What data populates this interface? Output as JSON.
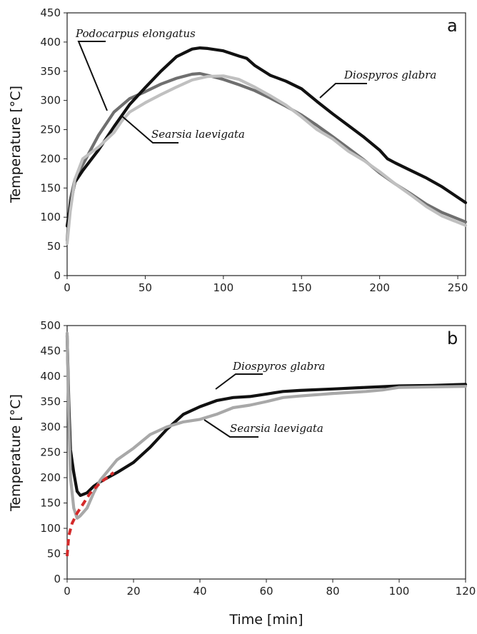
{
  "chart_data": [
    {
      "type": "line",
      "panel_label": "a",
      "xlabel": "",
      "ylabel": "Temperature [°C]",
      "xlim": [
        0,
        255
      ],
      "ylim": [
        0,
        450
      ],
      "xticks": [
        0,
        50,
        100,
        150,
        200,
        250
      ],
      "yticks": [
        0,
        50,
        100,
        150,
        200,
        250,
        300,
        350,
        400,
        450
      ],
      "series": [
        {
          "name": "Podocarpus elongatus",
          "color": "#6f6f6f",
          "points": [
            [
              0,
              60
            ],
            [
              2,
              130
            ],
            [
              5,
              165
            ],
            [
              10,
              190
            ],
            [
              20,
              240
            ],
            [
              30,
              280
            ],
            [
              40,
              303
            ],
            [
              50,
              315
            ],
            [
              60,
              328
            ],
            [
              70,
              338
            ],
            [
              80,
              345
            ],
            [
              85,
              346
            ],
            [
              90,
              343
            ],
            [
              100,
              336
            ],
            [
              110,
              327
            ],
            [
              120,
              317
            ],
            [
              130,
              304
            ],
            [
              140,
              290
            ],
            [
              150,
              275
            ],
            [
              160,
              257
            ],
            [
              170,
              238
            ],
            [
              180,
              218
            ],
            [
              190,
              198
            ],
            [
              200,
              176
            ],
            [
              210,
              157
            ],
            [
              220,
              140
            ],
            [
              230,
              122
            ],
            [
              240,
              108
            ],
            [
              255,
              92
            ]
          ]
        },
        {
          "name": "Diospyros glabra",
          "color": "#111111",
          "points": [
            [
              0,
              85
            ],
            [
              2,
              120
            ],
            [
              5,
              160
            ],
            [
              10,
              180
            ],
            [
              20,
              215
            ],
            [
              30,
              255
            ],
            [
              40,
              293
            ],
            [
              50,
              322
            ],
            [
              60,
              350
            ],
            [
              70,
              375
            ],
            [
              80,
              388
            ],
            [
              85,
              390
            ],
            [
              90,
              389
            ],
            [
              100,
              385
            ],
            [
              110,
              376
            ],
            [
              115,
              372
            ],
            [
              120,
              360
            ],
            [
              130,
              343
            ],
            [
              140,
              333
            ],
            [
              150,
              320
            ],
            [
              160,
              298
            ],
            [
              170,
              277
            ],
            [
              180,
              257
            ],
            [
              190,
              237
            ],
            [
              200,
              215
            ],
            [
              205,
              200
            ],
            [
              210,
              193
            ],
            [
              220,
              180
            ],
            [
              230,
              167
            ],
            [
              240,
              152
            ],
            [
              255,
              125
            ]
          ]
        },
        {
          "name": "Searsia laevigata",
          "color": "#c0c0c0",
          "points": [
            [
              0,
              55
            ],
            [
              2,
              110
            ],
            [
              5,
              165
            ],
            [
              10,
              200
            ],
            [
              20,
              220
            ],
            [
              30,
              245
            ],
            [
              35,
              265
            ],
            [
              40,
              280
            ],
            [
              50,
              296
            ],
            [
              60,
              310
            ],
            [
              70,
              323
            ],
            [
              80,
              335
            ],
            [
              90,
              341
            ],
            [
              100,
              342
            ],
            [
              110,
              336
            ],
            [
              120,
              323
            ],
            [
              130,
              308
            ],
            [
              140,
              292
            ],
            [
              150,
              272
            ],
            [
              160,
              250
            ],
            [
              170,
              234
            ],
            [
              180,
              213
            ],
            [
              190,
              197
            ],
            [
              200,
              178
            ],
            [
              210,
              157
            ],
            [
              220,
              138
            ],
            [
              230,
              118
            ],
            [
              240,
              102
            ],
            [
              255,
              86
            ]
          ]
        }
      ],
      "annotations": [
        {
          "text": "Podocarpus elongatus",
          "series": "Podocarpus elongatus"
        },
        {
          "text": "Diospyros glabra",
          "series": "Diospyros glabra"
        },
        {
          "text": "Searsia laevigata",
          "series": "Searsia laevigata"
        }
      ]
    },
    {
      "type": "line",
      "panel_label": "b",
      "xlabel": "Time [min]",
      "ylabel": "Temperature [°C]",
      "xlim": [
        0,
        120
      ],
      "ylim": [
        0,
        500
      ],
      "xticks": [
        0,
        20,
        40,
        60,
        80,
        100,
        120
      ],
      "yticks": [
        0,
        50,
        100,
        150,
        200,
        250,
        300,
        350,
        400,
        450,
        500
      ],
      "series": [
        {
          "name": "Diospyros glabra",
          "color": "#111111",
          "points": [
            [
              0,
              480
            ],
            [
              0.5,
              350
            ],
            [
              1,
              255
            ],
            [
              2,
              210
            ],
            [
              3,
              173
            ],
            [
              4,
              165
            ],
            [
              6,
              170
            ],
            [
              8,
              183
            ],
            [
              10,
              192
            ],
            [
              15,
              210
            ],
            [
              20,
              230
            ],
            [
              25,
              260
            ],
            [
              30,
              295
            ],
            [
              35,
              325
            ],
            [
              40,
              340
            ],
            [
              45,
              352
            ],
            [
              50,
              358
            ],
            [
              55,
              360
            ],
            [
              60,
              365
            ],
            [
              65,
              370
            ],
            [
              70,
              372
            ],
            [
              80,
              375
            ],
            [
              90,
              378
            ],
            [
              100,
              381
            ],
            [
              110,
              382
            ],
            [
              120,
              384
            ]
          ]
        },
        {
          "name": "Searsia laevigata",
          "color": "#a8a8a8",
          "points": [
            [
              0,
              485
            ],
            [
              0.5,
              320
            ],
            [
              1,
              200
            ],
            [
              2,
              140
            ],
            [
              3,
              120
            ],
            [
              4,
              125
            ],
            [
              6,
              140
            ],
            [
              8,
              170
            ],
            [
              10,
              195
            ],
            [
              15,
              235
            ],
            [
              20,
              258
            ],
            [
              25,
              285
            ],
            [
              30,
              300
            ],
            [
              35,
              310
            ],
            [
              40,
              315
            ],
            [
              45,
              325
            ],
            [
              50,
              338
            ],
            [
              55,
              343
            ],
            [
              60,
              350
            ],
            [
              65,
              358
            ],
            [
              70,
              361
            ],
            [
              80,
              366
            ],
            [
              90,
              370
            ],
            [
              95,
              373
            ],
            [
              100,
              378
            ],
            [
              110,
              379
            ],
            [
              120,
              380
            ]
          ]
        },
        {
          "name": "",
          "color": "#d42a2a",
          "dashed": true,
          "points": [
            [
              0,
              45
            ],
            [
              0.5,
              85
            ],
            [
              1.5,
              110
            ],
            [
              3,
              130
            ],
            [
              5,
              150
            ],
            [
              7,
              170
            ],
            [
              10,
              190
            ],
            [
              14,
              210
            ]
          ]
        }
      ],
      "annotations": [
        {
          "text": "Diospyros glabra",
          "series": "Diospyros glabra"
        },
        {
          "text": "Searsia laevigata",
          "series": "Searsia laevigata"
        }
      ]
    }
  ]
}
